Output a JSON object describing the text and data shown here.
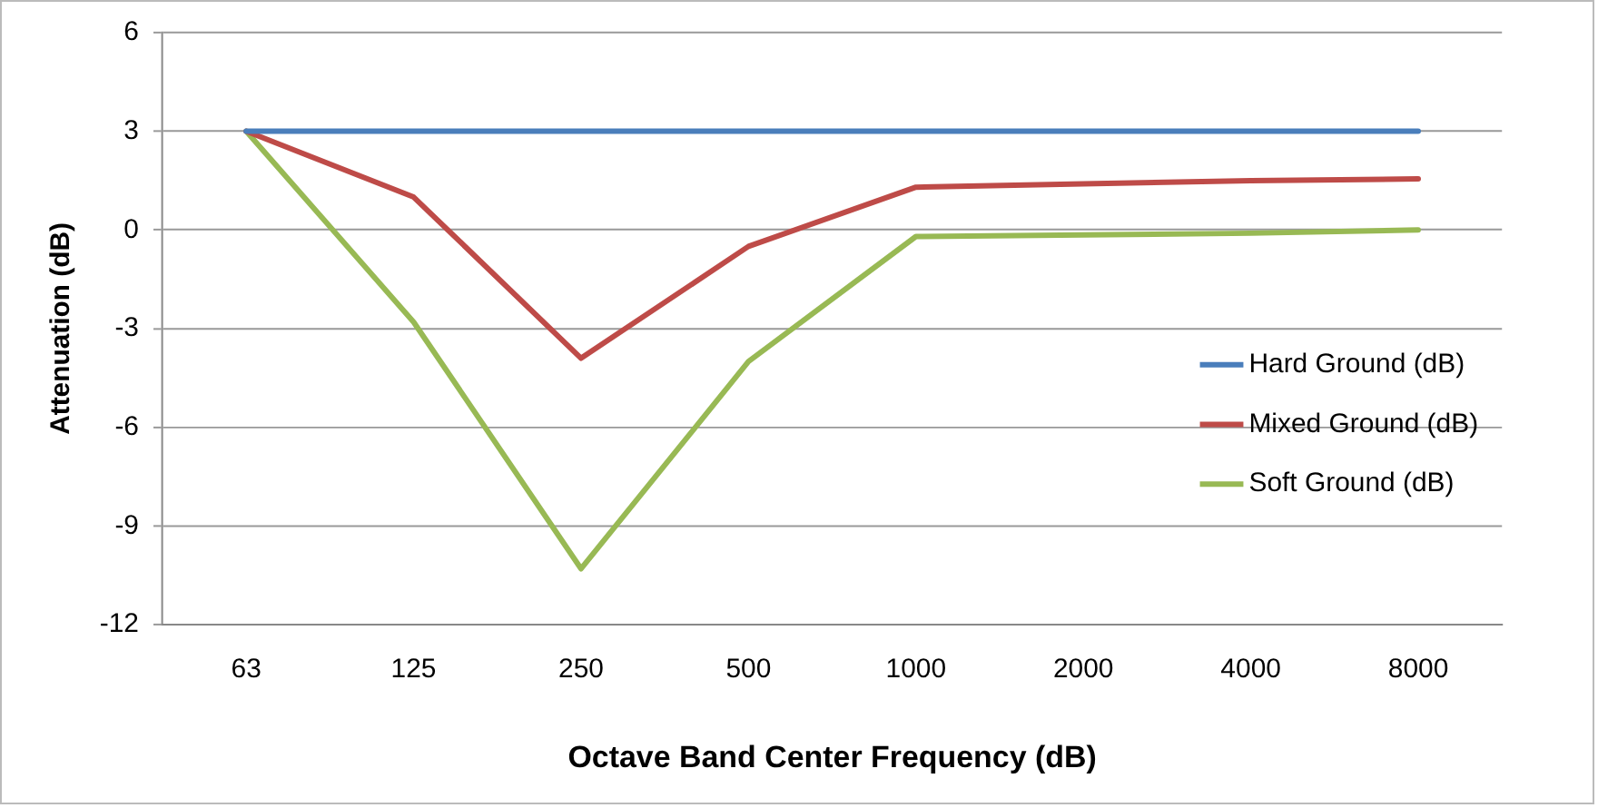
{
  "chart_data": {
    "type": "line",
    "xlabel": "Octave Band Center Frequency (dB)",
    "ylabel": "Attenuation (dB)",
    "categories": [
      "63",
      "125",
      "250",
      "500",
      "1000",
      "2000",
      "4000",
      "8000"
    ],
    "series": [
      {
        "name": "Hard Ground (dB)",
        "color": "#4a7ebb",
        "values": [
          3,
          3,
          3,
          3,
          3,
          3,
          3,
          3
        ]
      },
      {
        "name": "Mixed Ground (dB)",
        "color": "#be4b48",
        "values": [
          3,
          1,
          -3.9,
          -0.5,
          1.3,
          1.4,
          1.5,
          1.55
        ]
      },
      {
        "name": "Soft Ground (dB)",
        "color": "#98b954",
        "values": [
          3,
          -2.8,
          -10.3,
          -4,
          -0.2,
          -0.15,
          -0.1,
          0
        ]
      }
    ],
    "ylim": [
      -12,
      6
    ],
    "yticks": [
      -12,
      -9,
      -6,
      -3,
      0,
      3,
      6
    ],
    "grid": "y",
    "legend": "right",
    "marker": "none",
    "line_style": "solid"
  }
}
